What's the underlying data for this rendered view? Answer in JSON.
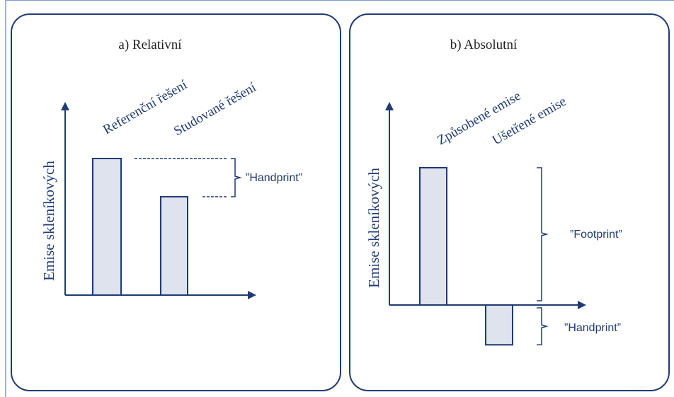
{
  "colors": {
    "border": "#1f3b73",
    "text": "#1f3b73",
    "bar_fill": "#dfe3ee",
    "bar_stroke": "#1f3b73",
    "outer_frame": "#7f9ccc"
  },
  "panel_a": {
    "title": "a) Relativní",
    "y_axis_label": "Emise skleníkových",
    "bar_labels": [
      "Referenční řešení",
      "Studované řešení"
    ],
    "bar_values": [
      1.0,
      0.72
    ],
    "annotation": "”Handprint”"
  },
  "panel_b": {
    "title": "b) Absolutní",
    "y_axis_label": "Emise skleníkových",
    "bar_labels": [
      "Způsobené emise",
      "Ušetřené emise"
    ],
    "bar_values": [
      1.0,
      -0.29
    ],
    "annotation_top": "”Footprint”",
    "annotation_bottom": "”Handprint”"
  }
}
